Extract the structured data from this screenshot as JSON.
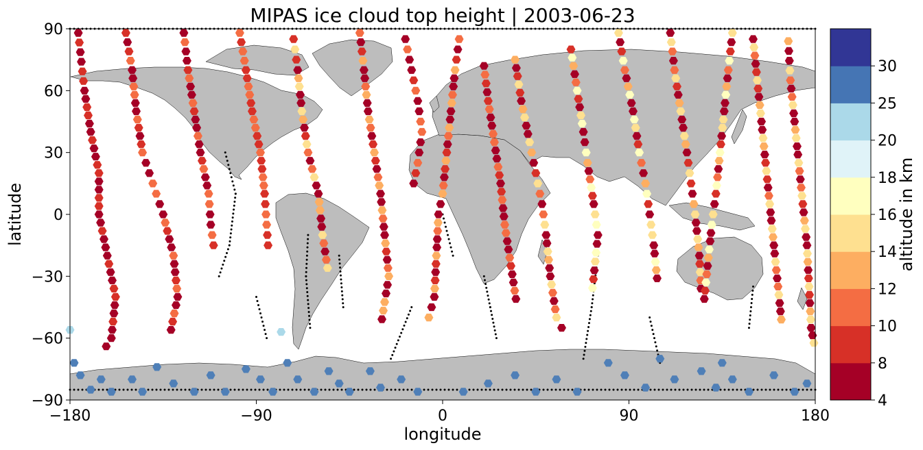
{
  "chart_data": {
    "type": "scatter",
    "title": "MIPAS ice cloud top height | 2003-06-23",
    "xlabel": "longitude",
    "ylabel": "latitude",
    "xlim": [
      -180,
      180
    ],
    "ylim": [
      -90,
      90
    ],
    "xticks": [
      -180,
      -90,
      0,
      90,
      180
    ],
    "yticks": [
      -90,
      -60,
      -30,
      0,
      30,
      60,
      90
    ],
    "xtick_labels": [
      "−180",
      "−90",
      "0",
      "90",
      "180"
    ],
    "ytick_labels": [
      "−90",
      "−60",
      "−30",
      "0",
      "30",
      "60",
      "90"
    ],
    "grid": false,
    "marker": "hexagon",
    "background_map": "world coastlines, land shaded grey",
    "colorbar": {
      "label": "altitude in km",
      "position": "right",
      "boundaries": [
        4,
        8,
        10,
        12,
        14,
        16,
        18,
        20,
        25,
        30
      ],
      "tick_labels": [
        "4",
        "8",
        "10",
        "12",
        "14",
        "16",
        "18",
        "20",
        "25",
        "30"
      ],
      "colors": [
        "#a50026",
        "#d73027",
        "#f46d43",
        "#fdae61",
        "#fee090",
        "#ffffbf",
        "#e0f3f8",
        "#abd9e9",
        "#4575b4",
        "#313695"
      ]
    },
    "no_cloud_points": {
      "marker": "dot",
      "color": "#000000"
    },
    "orbit_tracks": [
      {
        "color_band_km": "4-10",
        "points": [
          [
            -176,
            88
          ],
          [
            -173,
            60
          ],
          [
            -170,
            40
          ],
          [
            -166,
            20
          ],
          [
            -166,
            0
          ],
          [
            -162,
            -20
          ],
          [
            -158,
            -40
          ],
          [
            -160,
            -60
          ],
          [
            -165,
            -68
          ]
        ]
      },
      {
        "color_band_km": "4-12",
        "points": [
          [
            -153,
            88
          ],
          [
            -150,
            70
          ],
          [
            -148,
            50
          ],
          [
            -145,
            30
          ],
          [
            -140,
            15
          ],
          [
            -135,
            0
          ],
          [
            -130,
            -20
          ],
          [
            -128,
            -40
          ],
          [
            -132,
            -60
          ]
        ]
      },
      {
        "color_band_km": "4-12",
        "points": [
          [
            -125,
            88
          ],
          [
            -123,
            70
          ],
          [
            -120,
            50
          ],
          [
            -117,
            30
          ],
          [
            -113,
            10
          ],
          [
            -112,
            -5
          ],
          [
            -110,
            -20
          ]
        ]
      },
      {
        "color_band_km": "8-12",
        "points": [
          [
            -98,
            88
          ],
          [
            -95,
            70
          ],
          [
            -92,
            50
          ],
          [
            -88,
            30
          ],
          [
            -86,
            10
          ],
          [
            -85,
            -5
          ],
          [
            -84,
            -20
          ]
        ]
      },
      {
        "color_band_km": "4-16",
        "points": [
          [
            -72,
            85
          ],
          [
            -70,
            70
          ],
          [
            -68,
            50
          ],
          [
            -65,
            30
          ],
          [
            -60,
            10
          ],
          [
            -58,
            -10
          ],
          [
            -55,
            -30
          ]
        ]
      },
      {
        "color_band_km": "4-14",
        "points": [
          [
            -40,
            88
          ],
          [
            -38,
            70
          ],
          [
            -36,
            50
          ],
          [
            -33,
            30
          ],
          [
            -30,
            10
          ],
          [
            -28,
            -10
          ],
          [
            -26,
            -30
          ],
          [
            -30,
            -55
          ]
        ]
      },
      {
        "color_band_km": "4-12",
        "points": [
          [
            -18,
            85
          ],
          [
            -15,
            70
          ],
          [
            -12,
            55
          ],
          [
            -10,
            40
          ],
          [
            -12,
            25
          ],
          [
            -15,
            10
          ]
        ]
      },
      {
        "color_band_km": "4-14",
        "points": [
          [
            8,
            85
          ],
          [
            6,
            70
          ],
          [
            4,
            50
          ],
          [
            2,
            30
          ],
          [
            0,
            10
          ],
          [
            -2,
            0
          ],
          [
            -3,
            -20
          ],
          [
            -4,
            -40
          ],
          [
            -8,
            -55
          ]
        ]
      },
      {
        "color_band_km": "4-12",
        "points": [
          [
            20,
            72
          ],
          [
            22,
            55
          ],
          [
            25,
            35
          ],
          [
            28,
            15
          ],
          [
            30,
            -5
          ],
          [
            33,
            -25
          ],
          [
            36,
            -45
          ]
        ]
      },
      {
        "color_band_km": "4-16",
        "points": [
          [
            35,
            75
          ],
          [
            38,
            55
          ],
          [
            42,
            35
          ],
          [
            45,
            20
          ],
          [
            48,
            5
          ],
          [
            50,
            -10
          ],
          [
            52,
            -30
          ],
          [
            55,
            -50
          ],
          [
            60,
            -60
          ]
        ]
      },
      {
        "color_band_km": "4-18",
        "points": [
          [
            62,
            80
          ],
          [
            65,
            60
          ],
          [
            68,
            40
          ],
          [
            70,
            25
          ],
          [
            73,
            5
          ],
          [
            75,
            -10
          ],
          [
            72,
            -40
          ]
        ]
      },
      {
        "color_band_km": "4-18",
        "points": [
          [
            85,
            88
          ],
          [
            88,
            70
          ],
          [
            92,
            50
          ],
          [
            95,
            30
          ],
          [
            98,
            15
          ],
          [
            100,
            0
          ],
          [
            102,
            -15
          ],
          [
            104,
            -35
          ]
        ]
      },
      {
        "color_band_km": "4-16",
        "points": [
          [
            110,
            88
          ],
          [
            112,
            70
          ],
          [
            115,
            50
          ],
          [
            118,
            30
          ],
          [
            120,
            15
          ],
          [
            122,
            0
          ],
          [
            124,
            -20
          ],
          [
            125,
            -40
          ]
        ]
      },
      {
        "color_band_km": "4-18",
        "points": [
          [
            140,
            88
          ],
          [
            138,
            70
          ],
          [
            136,
            50
          ],
          [
            134,
            30
          ],
          [
            132,
            10
          ],
          [
            130,
            -5
          ],
          [
            128,
            -25
          ],
          [
            126,
            -45
          ]
        ]
      },
      {
        "color_band_km": "4-16",
        "points": [
          [
            150,
            85
          ],
          [
            152,
            65
          ],
          [
            154,
            45
          ],
          [
            156,
            25
          ],
          [
            158,
            5
          ],
          [
            160,
            -15
          ],
          [
            162,
            -35
          ],
          [
            164,
            -55
          ]
        ]
      },
      {
        "color_band_km": "4-16",
        "points": [
          [
            167,
            84
          ],
          [
            168,
            65
          ],
          [
            170,
            45
          ],
          [
            172,
            25
          ],
          [
            174,
            5
          ],
          [
            176,
            -15
          ],
          [
            177,
            -35
          ],
          [
            178,
            -55
          ],
          [
            180,
            -66
          ]
        ]
      }
    ],
    "antarctic_points_20_25km": [
      [
        -178,
        -72
      ],
      [
        -175,
        -78
      ],
      [
        -170,
        -85
      ],
      [
        -165,
        -80
      ],
      [
        -160,
        -86
      ],
      [
        -150,
        -80
      ],
      [
        -145,
        -86
      ],
      [
        -138,
        -74
      ],
      [
        -130,
        -82
      ],
      [
        -120,
        -86
      ],
      [
        -112,
        -78
      ],
      [
        -105,
        -86
      ],
      [
        -95,
        -75
      ],
      [
        -88,
        -80
      ],
      [
        -82,
        -86
      ],
      [
        -75,
        -72
      ],
      [
        -70,
        -80
      ],
      [
        -62,
        -86
      ],
      [
        -55,
        -76
      ],
      [
        -50,
        -82
      ],
      [
        -45,
        -86
      ],
      [
        -35,
        -76
      ],
      [
        -30,
        -84
      ],
      [
        -20,
        -80
      ],
      [
        -12,
        -86
      ],
      [
        10,
        -86
      ],
      [
        22,
        -82
      ],
      [
        35,
        -78
      ],
      [
        45,
        -86
      ],
      [
        55,
        -80
      ],
      [
        65,
        -86
      ],
      [
        80,
        -72
      ],
      [
        88,
        -78
      ],
      [
        98,
        -84
      ],
      [
        105,
        -70
      ],
      [
        112,
        -80
      ],
      [
        125,
        -76
      ],
      [
        132,
        -84
      ],
      [
        135,
        -72
      ],
      [
        140,
        -80
      ],
      [
        148,
        -86
      ],
      [
        160,
        -78
      ],
      [
        170,
        -86
      ],
      [
        176,
        -82
      ],
      [
        -180,
        -56
      ],
      [
        -78,
        -57
      ]
    ],
    "no_cloud_tracks": [
      [
        [
          -105,
          30
        ],
        [
          -100,
          10
        ],
        [
          -103,
          -15
        ],
        [
          -108,
          -30
        ]
      ],
      [
        [
          -90,
          -40
        ],
        [
          -85,
          -60
        ]
      ],
      [
        [
          -65,
          -10
        ],
        [
          -66,
          -30
        ],
        [
          -64,
          -55
        ]
      ],
      [
        [
          -50,
          -20
        ],
        [
          -48,
          -45
        ]
      ],
      [
        [
          20,
          -30
        ],
        [
          23,
          -45
        ],
        [
          26,
          -60
        ]
      ],
      [
        [
          -15,
          -45
        ],
        [
          -25,
          -70
        ]
      ],
      [
        [
          75,
          -20
        ],
        [
          72,
          -45
        ],
        [
          68,
          -70
        ]
      ],
      [
        [
          100,
          -50
        ],
        [
          105,
          -72
        ]
      ],
      [
        [
          150,
          -35
        ],
        [
          148,
          -55
        ]
      ],
      [
        [
          0,
          0
        ],
        [
          5,
          -20
        ]
      ],
      [
        [
          -180,
          90
        ],
        [
          180,
          90
        ]
      ],
      [
        [
          -180,
          -85
        ],
        [
          180,
          -85
        ]
      ]
    ]
  }
}
